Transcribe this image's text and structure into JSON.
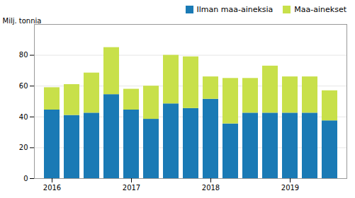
{
  "chart_data": {
    "type": "bar",
    "stacked": true,
    "categories": [
      "2016",
      null,
      null,
      null,
      "2017",
      null,
      null,
      null,
      "2018",
      null,
      null,
      null,
      "2019",
      null,
      null
    ],
    "series": [
      {
        "name": "Ilman maa-aineksia",
        "color": "#1a7ab5",
        "values": [
          44.5,
          41.0,
          42.5,
          54.5,
          44.5,
          38.5,
          48.5,
          45.5,
          51.5,
          35.5,
          42.5,
          42.5,
          42.5,
          42.5,
          37.5
        ]
      },
      {
        "name": "Maa-ainekset",
        "color": "#c8e04a",
        "values": [
          14.5,
          20.0,
          26.0,
          30.5,
          13.5,
          21.5,
          31.5,
          33.5,
          14.5,
          29.5,
          22.5,
          30.5,
          23.5,
          23.5,
          19.5
        ]
      }
    ],
    "ylabel": "Milj. tonnia",
    "ylim": [
      0,
      100
    ],
    "yticks": [
      0,
      20,
      40,
      60,
      80
    ],
    "grid": true,
    "legend": "upper right"
  }
}
